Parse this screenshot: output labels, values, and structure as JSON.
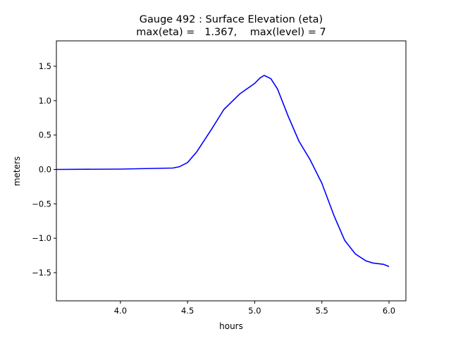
{
  "chart_data": {
    "type": "line",
    "title": "Gauge 492 : Surface Elevation (eta)",
    "subtitle": "max(eta) =   1.367,    max(level) = 7",
    "xlabel": "hours",
    "ylabel": "meters",
    "xlim": [
      3.523,
      6.126
    ],
    "ylim": [
      -1.91,
      1.869
    ],
    "xticks": [
      4.0,
      4.5,
      5.0,
      5.5,
      6.0
    ],
    "xtick_labels": [
      "4.0",
      "4.5",
      "5.0",
      "5.5",
      "6.0"
    ],
    "yticks": [
      1.5,
      1.0,
      0.5,
      0.0,
      -0.5,
      -1.0,
      -1.5
    ],
    "ytick_labels": [
      "1.5",
      "1.0",
      "0.5",
      "0.0",
      "−0.5",
      "−1.0",
      "−1.5"
    ],
    "grid": false,
    "series": [
      {
        "name": "eta",
        "color": "#0000ff",
        "x": [
          3.523,
          4.0,
          4.39,
          4.44,
          4.5,
          4.57,
          4.68,
          4.77,
          4.89,
          5.0,
          5.04,
          5.07,
          5.12,
          5.17,
          5.25,
          5.33,
          5.41,
          5.5,
          5.59,
          5.67,
          5.75,
          5.83,
          5.88,
          5.96,
          6.0
        ],
        "y": [
          0.0,
          0.005,
          0.02,
          0.04,
          0.1,
          0.26,
          0.59,
          0.87,
          1.1,
          1.25,
          1.33,
          1.367,
          1.32,
          1.17,
          0.77,
          0.41,
          0.15,
          -0.2,
          -0.67,
          -1.03,
          -1.23,
          -1.33,
          -1.36,
          -1.38,
          -1.41
        ]
      }
    ]
  }
}
